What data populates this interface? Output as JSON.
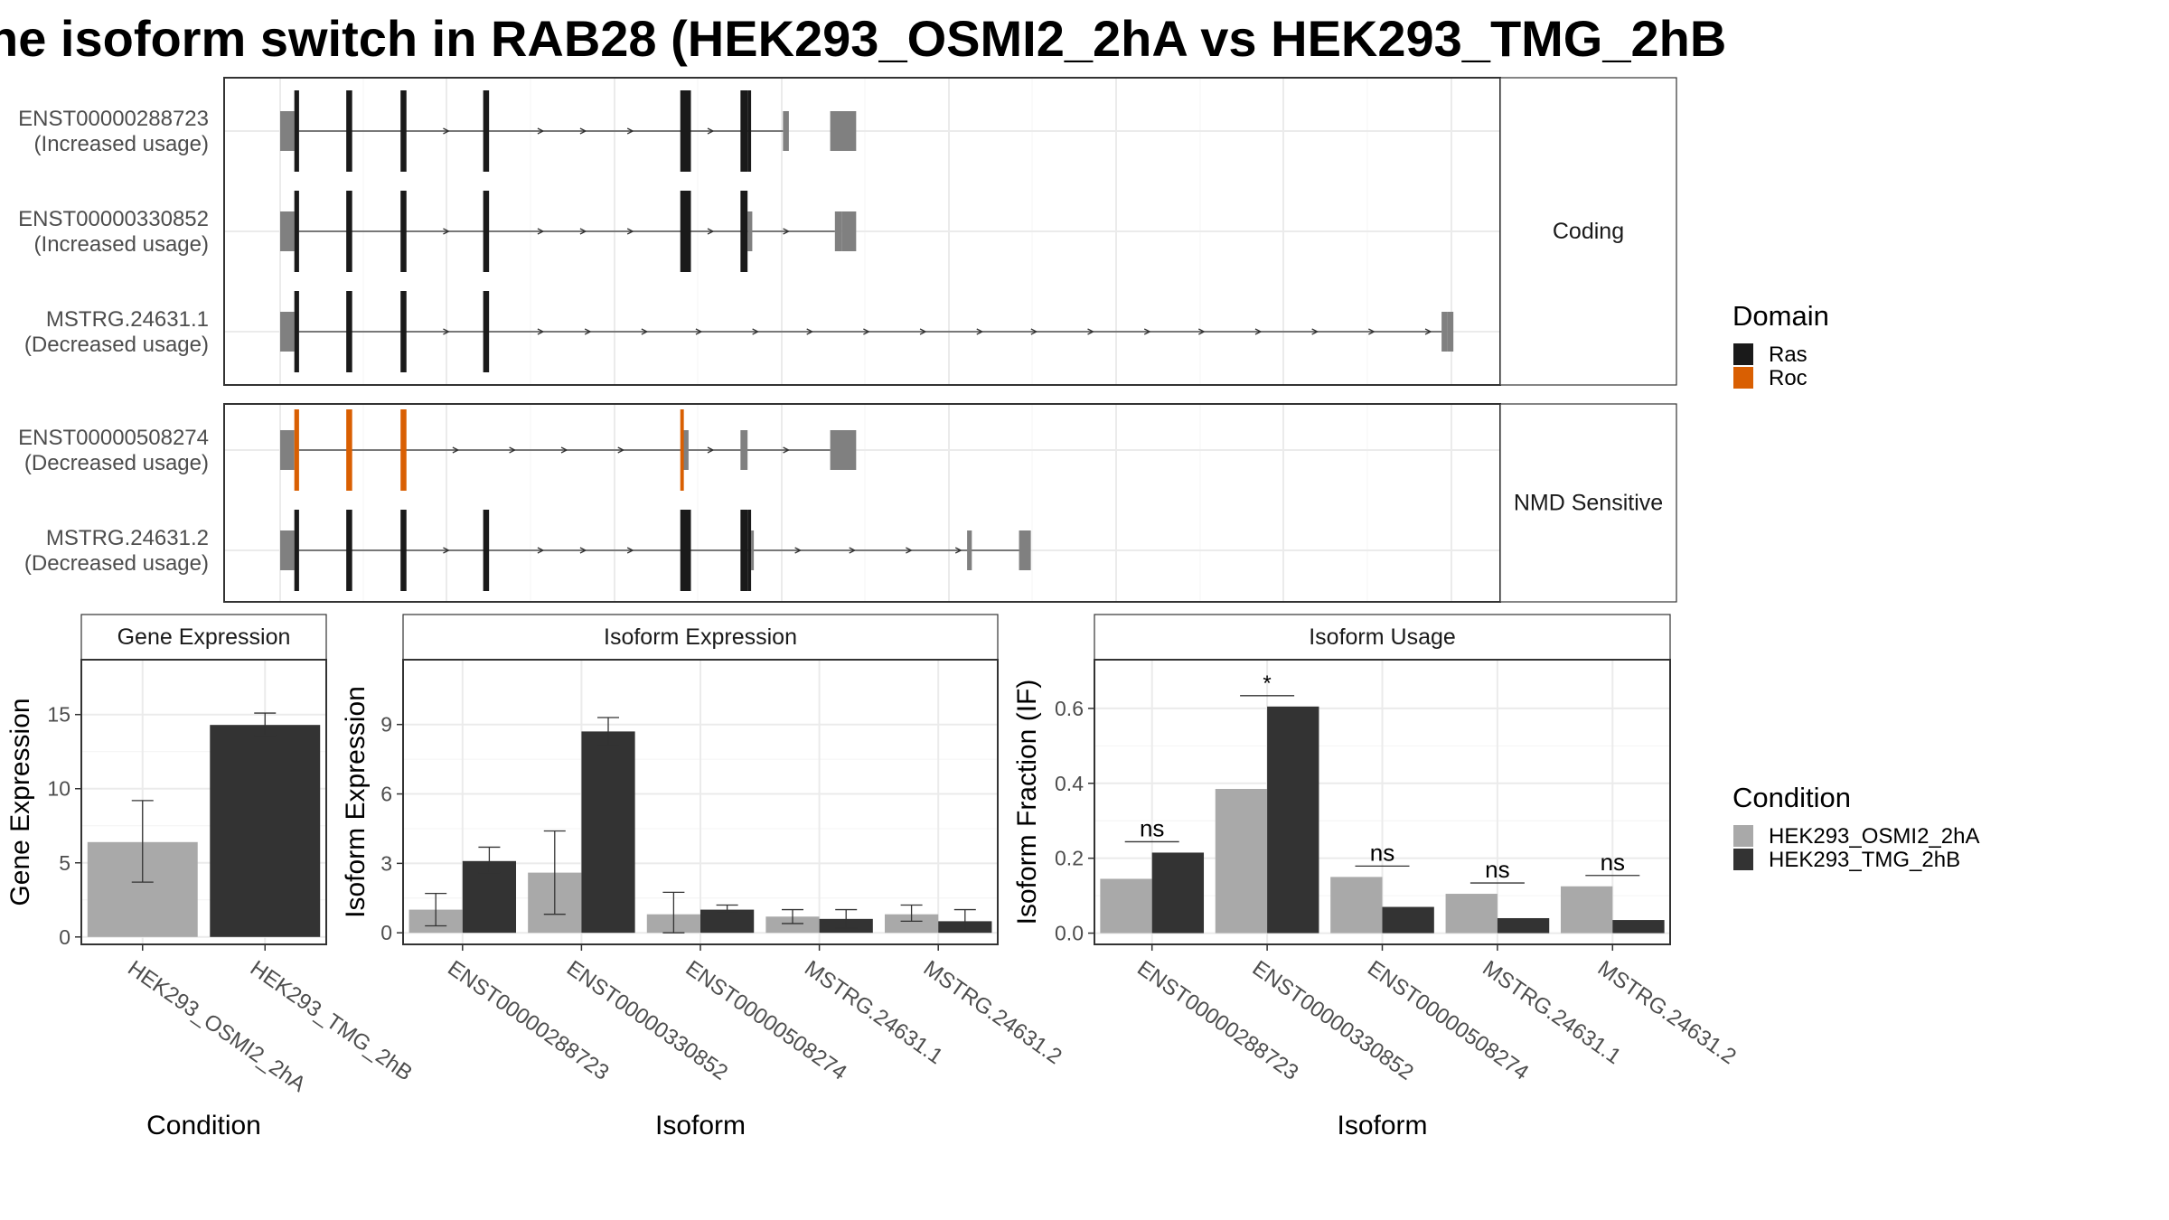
{
  "title": "he isoform switch in RAB28 (HEK293_OSMI2_2hA vs HEK293_TMG_2hB",
  "colors": {
    "ras": "#1a1a1a",
    "roc": "#d95f02",
    "utr": "#808080",
    "cond1": "#a9a9a9",
    "cond2": "#333333"
  },
  "chart_data": [
    {
      "type": "gene-structure",
      "x_range": [
        0,
        1000
      ],
      "grid": true,
      "facets": [
        {
          "label": "Coding",
          "isoforms": [
            {
              "id": "ENST00000288723",
              "usage": "(Increased usage)",
              "utr": [
                [
                  0,
                  12
                ],
                [
                  426,
                  431
                ],
                [
                  466,
                  488
                ]
              ],
              "cds": [
                [
                  12,
                  16
                ],
                [
                  56,
                  61
                ],
                [
                  102,
                  107
                ],
                [
                  172,
                  177
                ],
                [
                  339,
                  348
                ],
                [
                  390,
                  396
                ],
                [
                  396,
                  399
                ]
              ],
              "line": [
                16,
                426
              ],
              "arrows": [
                142,
                222,
                258,
                298,
                366
              ]
            },
            {
              "id": "ENST00000330852",
              "usage": "(Increased usage)",
              "utr": [
                [
                  0,
                  12
                ],
                [
                  396,
                  400
                ],
                [
                  470,
                  476
                ],
                [
                  476,
                  488
                ]
              ],
              "cds": [
                [
                  12,
                  16
                ],
                [
                  56,
                  61
                ],
                [
                  102,
                  107
                ],
                [
                  172,
                  177
                ],
                [
                  339,
                  348
                ],
                [
                  390,
                  396
                ]
              ],
              "line": [
                16,
                470
              ],
              "arrows": [
                142,
                222,
                258,
                298,
                366,
                430
              ]
            },
            {
              "id": "MSTRG.24631.1",
              "usage": "(Decreased usage)",
              "utr": [
                [
                  0,
                  12
                ],
                [
                  984,
                  989
                ],
                [
                  989,
                  994
                ]
              ],
              "cds": [
                [
                  12,
                  16
                ],
                [
                  56,
                  61
                ],
                [
                  102,
                  107
                ],
                [
                  172,
                  177
                ]
              ],
              "line": [
                16,
                984
              ],
              "arrows": [
                142,
                222,
                262,
                310,
                356,
                404,
                450,
                498,
                546,
                594,
                640,
                688,
                736,
                782,
                830,
                878,
                926,
                974
              ]
            }
          ]
        },
        {
          "label": "NMD Sensitive",
          "isoforms": [
            {
              "id": "ENST00000508274",
              "usage": "(Decreased usage)",
              "utr": [
                [
                  0,
                  12
                ],
                [
                  340,
                  346
                ],
                [
                  390,
                  396
                ],
                [
                  466,
                  488
                ]
              ],
              "cds": [],
              "roc": [
                [
                  12,
                  16
                ],
                [
                  56,
                  61
                ],
                [
                  102,
                  107
                ],
                [
                  339,
                  342
                ]
              ],
              "line": [
                16,
                466
              ],
              "arrows": [
                150,
                198,
                242,
                290,
                366,
                430
              ]
            },
            {
              "id": "MSTRG.24631.2",
              "usage": "(Decreased usage)",
              "utr": [
                [
                  0,
                  12
                ],
                [
                  399,
                  401
                ],
                [
                  582,
                  586
                ],
                [
                  626,
                  636
                ]
              ],
              "cds": [
                [
                  12,
                  16
                ],
                [
                  56,
                  61
                ],
                [
                  102,
                  107
                ],
                [
                  172,
                  177
                ],
                [
                  339,
                  348
                ],
                [
                  390,
                  396
                ],
                [
                  396,
                  399
                ]
              ],
              "line": [
                16,
                626
              ],
              "arrows": [
                142,
                222,
                258,
                298,
                440,
                486,
                534,
                576
              ]
            }
          ]
        }
      ],
      "legend": {
        "title": "Domain",
        "items": [
          "Ras",
          "Roc"
        ]
      }
    },
    {
      "type": "bar",
      "facet_title": "Gene Expression",
      "xlabel": "Condition",
      "ylabel": "Gene Expression",
      "categories": [
        "HEK293_OSMI2_2hA",
        "HEK293_TMG_2hB"
      ],
      "values": [
        6.4,
        14.3
      ],
      "errors": [
        [
          3.7,
          9.2
        ],
        [
          13.6,
          15.1
        ]
      ],
      "ylim": [
        -0.5,
        18.7
      ],
      "yticks": [
        0,
        5,
        10,
        15
      ],
      "grid": true
    },
    {
      "type": "bar",
      "facet_title": "Isoform Expression",
      "xlabel": "Isoform",
      "ylabel": "Isoform Expression",
      "categories": [
        "ENST00000288723",
        "ENST00000330852",
        "ENST00000508274",
        "MSTRG.24631.1",
        "MSTRG.24631.2"
      ],
      "series": [
        {
          "name": "HEK293_OSMI2_2hA",
          "values": [
            1.0,
            2.6,
            0.8,
            0.7,
            0.8
          ],
          "errors": [
            [
              0.3,
              1.7
            ],
            [
              0.8,
              4.4
            ],
            [
              0.0,
              1.75
            ],
            [
              0.4,
              1.0
            ],
            [
              0.5,
              1.2
            ]
          ]
        },
        {
          "name": "HEK293_TMG_2hB",
          "values": [
            3.1,
            8.7,
            1.0,
            0.6,
            0.5
          ],
          "errors": [
            [
              2.6,
              3.7
            ],
            [
              8.1,
              9.3
            ],
            [
              0.9,
              1.2
            ],
            [
              0.2,
              1.0
            ],
            [
              0.1,
              1.0
            ]
          ]
        }
      ],
      "ylim": [
        -0.5,
        11.8
      ],
      "yticks": [
        0,
        3,
        6,
        9
      ],
      "grid": true
    },
    {
      "type": "bar",
      "facet_title": "Isoform Usage",
      "xlabel": "Isoform",
      "ylabel": "Isoform Fraction (IF)",
      "categories": [
        "ENST00000288723",
        "ENST00000330852",
        "ENST00000508274",
        "MSTRG.24631.1",
        "MSTRG.24631.2"
      ],
      "series": [
        {
          "name": "HEK293_OSMI2_2hA",
          "values": [
            0.145,
            0.385,
            0.15,
            0.105,
            0.125
          ]
        },
        {
          "name": "HEK293_TMG_2hB",
          "values": [
            0.215,
            0.605,
            0.07,
            0.04,
            0.035
          ]
        }
      ],
      "significance": [
        "ns",
        "*",
        "ns",
        "ns",
        "ns"
      ],
      "ylim": [
        -0.03,
        0.73
      ],
      "yticks": [
        "0.0",
        "0.2",
        "0.4",
        "0.6"
      ],
      "grid": true
    }
  ],
  "condition_legend": {
    "title": "Condition",
    "items": [
      "HEK293_OSMI2_2hA",
      "HEK293_TMG_2hB"
    ]
  }
}
